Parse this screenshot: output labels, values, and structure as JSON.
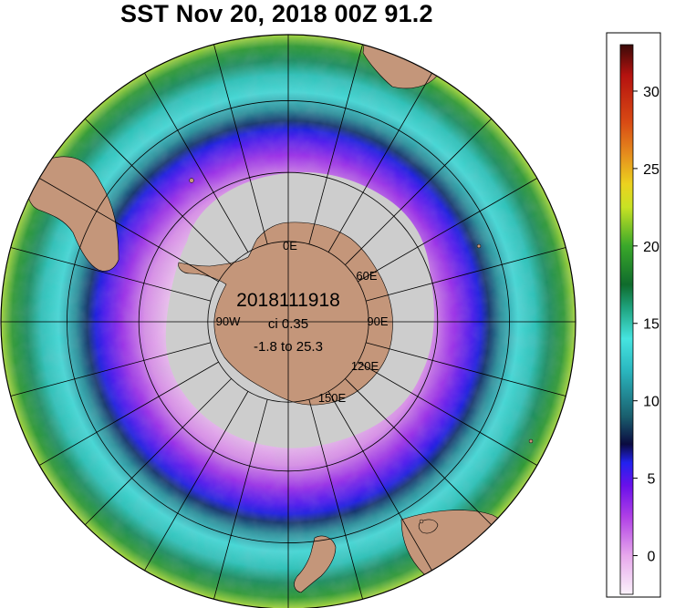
{
  "title": "SST Nov 20, 2018 00Z 91.2",
  "center": {
    "date_code": "2018111918",
    "contour_interval": "ci 0.35",
    "range": "-1.8 to 25.3"
  },
  "meridian_labels": [
    "0E",
    "60E",
    "90E",
    "120E",
    "150E",
    "90W"
  ],
  "colorbar": {
    "min": -2.5,
    "max": 33,
    "ticks": [
      {
        "value": 0,
        "label": "0"
      },
      {
        "value": 5,
        "label": "5"
      },
      {
        "value": 10,
        "label": "10"
      },
      {
        "value": 15,
        "label": "15"
      },
      {
        "value": 20,
        "label": "20"
      },
      {
        "value": 25,
        "label": "25"
      },
      {
        "value": 30,
        "label": "30"
      }
    ],
    "stops": [
      {
        "value": -2.5,
        "color": "#fbf2fb"
      },
      {
        "value": 0,
        "color": "#e7a8ec"
      },
      {
        "value": 2.5,
        "color": "#b040e6"
      },
      {
        "value": 4.5,
        "color": "#6a10ea"
      },
      {
        "value": 6.0,
        "color": "#2222ee"
      },
      {
        "value": 7.2,
        "color": "#0b0b40"
      },
      {
        "value": 9.0,
        "color": "#1a5f6e"
      },
      {
        "value": 12,
        "color": "#2bb8c0"
      },
      {
        "value": 14,
        "color": "#46e4e0"
      },
      {
        "value": 16,
        "color": "#1fa37e"
      },
      {
        "value": 17.5,
        "color": "#0f6b2c"
      },
      {
        "value": 20,
        "color": "#3aa82a"
      },
      {
        "value": 22.5,
        "color": "#c8e224"
      },
      {
        "value": 24,
        "color": "#ecd21f"
      },
      {
        "value": 26,
        "color": "#e58a1d"
      },
      {
        "value": 28,
        "color": "#d84a14"
      },
      {
        "value": 31,
        "color": "#b5120f"
      },
      {
        "value": 33,
        "color": "#3a0a08"
      }
    ]
  },
  "colors": {
    "land": "#c4967a",
    "sea_ice": "#cdcdcd",
    "graticule": "#000000"
  }
}
